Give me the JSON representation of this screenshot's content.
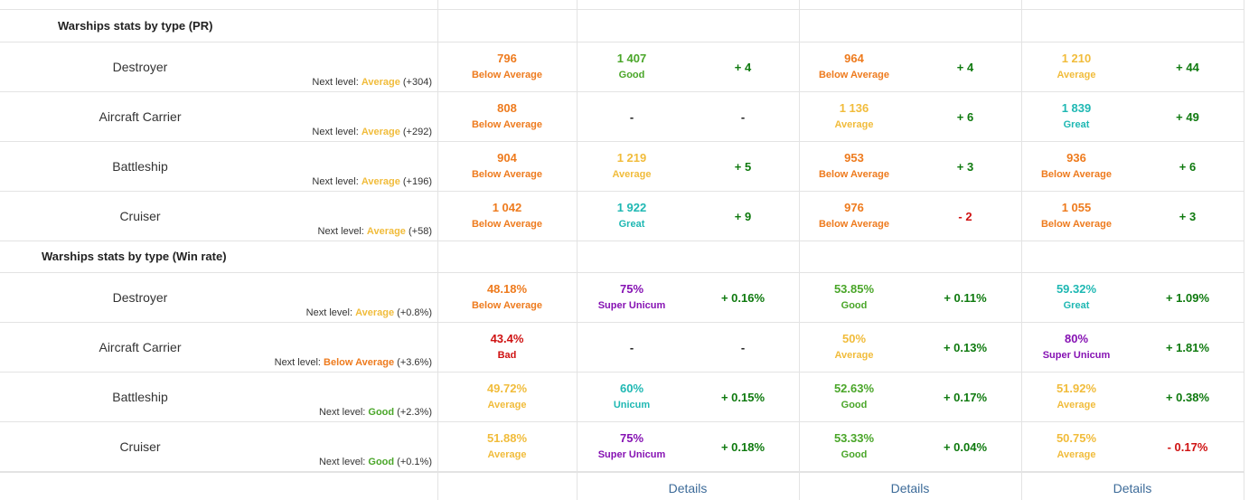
{
  "colors": {
    "Below Average": "#ee7b1e",
    "Average": "#f1bc3b",
    "Good": "#4aa629",
    "Great": "#1fb8b3",
    "Unicum": "#1fb8b3",
    "Super Unicum": "#8612b3",
    "Bad": "#cf1212",
    "positive": "#0f7a0f",
    "negative": "#cf1212"
  },
  "sections": [
    {
      "title": "Warships stats by type (PR)",
      "rows": [
        {
          "type": "Destroyer",
          "next_prefix": "Next level: ",
          "next_level": "Average",
          "next_delta": "(+304)",
          "main": {
            "value": "796",
            "rating": "Below Average"
          },
          "cols": [
            {
              "value": "1 407",
              "rating": "Good",
              "delta": "+ 4"
            },
            {
              "value": "964",
              "rating": "Below Average",
              "delta": "+ 4"
            },
            {
              "value": "1 210",
              "rating": "Average",
              "delta": "+ 44"
            }
          ]
        },
        {
          "type": "Aircraft Carrier",
          "next_prefix": "Next level: ",
          "next_level": "Average",
          "next_delta": "(+292)",
          "main": {
            "value": "808",
            "rating": "Below Average"
          },
          "cols": [
            {
              "value": "-",
              "rating": "",
              "delta": "-"
            },
            {
              "value": "1 136",
              "rating": "Average",
              "delta": "+ 6"
            },
            {
              "value": "1 839",
              "rating": "Great",
              "delta": "+ 49"
            }
          ]
        },
        {
          "type": "Battleship",
          "next_prefix": "Next level: ",
          "next_level": "Average",
          "next_delta": "(+196)",
          "main": {
            "value": "904",
            "rating": "Below Average"
          },
          "cols": [
            {
              "value": "1 219",
              "rating": "Average",
              "delta": "+ 5"
            },
            {
              "value": "953",
              "rating": "Below Average",
              "delta": "+ 3"
            },
            {
              "value": "936",
              "rating": "Below Average",
              "delta": "+ 6"
            }
          ]
        },
        {
          "type": "Cruiser",
          "next_prefix": "Next level: ",
          "next_level": "Average",
          "next_delta": "(+58)",
          "main": {
            "value": "1 042",
            "rating": "Below Average"
          },
          "cols": [
            {
              "value": "1 922",
              "rating": "Great",
              "delta": "+ 9"
            },
            {
              "value": "976",
              "rating": "Below Average",
              "delta": "- 2"
            },
            {
              "value": "1 055",
              "rating": "Below Average",
              "delta": "+ 3"
            }
          ]
        }
      ]
    },
    {
      "title": "Warships stats by type (Win rate)",
      "rows": [
        {
          "type": "Destroyer",
          "next_prefix": "Next level: ",
          "next_level": "Average",
          "next_delta": "(+0.8%)",
          "main": {
            "value": "48.18%",
            "rating": "Below Average"
          },
          "cols": [
            {
              "value": "75%",
              "rating": "Super Unicum",
              "delta": "+ 0.16%"
            },
            {
              "value": "53.85%",
              "rating": "Good",
              "delta": "+ 0.11%"
            },
            {
              "value": "59.32%",
              "rating": "Great",
              "delta": "+ 1.09%"
            }
          ]
        },
        {
          "type": "Aircraft Carrier",
          "next_prefix": "Next level: ",
          "next_level": "Below Average",
          "next_delta": "(+3.6%)",
          "main": {
            "value": "43.4%",
            "rating": "Bad"
          },
          "cols": [
            {
              "value": "-",
              "rating": "",
              "delta": "-"
            },
            {
              "value": "50%",
              "rating": "Average",
              "delta": "+ 0.13%"
            },
            {
              "value": "80%",
              "rating": "Super Unicum",
              "delta": "+ 1.81%"
            }
          ]
        },
        {
          "type": "Battleship",
          "next_prefix": "Next level: ",
          "next_level": "Good",
          "next_delta": "(+2.3%)",
          "main": {
            "value": "49.72%",
            "rating": "Average"
          },
          "cols": [
            {
              "value": "60%",
              "rating": "Unicum",
              "delta": "+ 0.15%"
            },
            {
              "value": "52.63%",
              "rating": "Good",
              "delta": "+ 0.17%"
            },
            {
              "value": "51.92%",
              "rating": "Average",
              "delta": "+ 0.38%"
            }
          ]
        },
        {
          "type": "Cruiser",
          "next_prefix": "Next level: ",
          "next_level": "Good",
          "next_delta": "(+0.1%)",
          "main": {
            "value": "51.88%",
            "rating": "Average"
          },
          "cols": [
            {
              "value": "75%",
              "rating": "Super Unicum",
              "delta": "+ 0.18%"
            },
            {
              "value": "53.33%",
              "rating": "Good",
              "delta": "+ 0.04%"
            },
            {
              "value": "50.75%",
              "rating": "Average",
              "delta": "- 0.17%"
            }
          ]
        }
      ]
    }
  ],
  "footer": {
    "details_links": [
      "Details",
      "Details",
      "Details"
    ]
  }
}
